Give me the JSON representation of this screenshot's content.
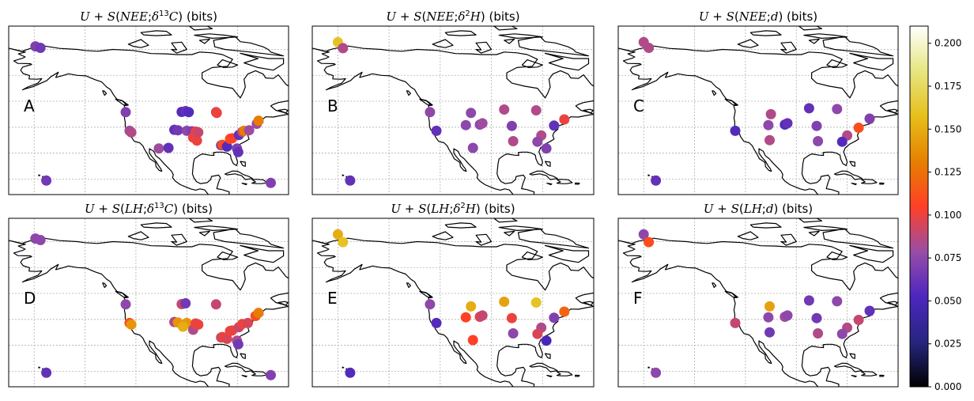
{
  "panels": [
    {
      "letter": "A",
      "title_pre": "U + S(",
      "title_var": "NEE",
      "title_tracer": "δ13C",
      "title_post": ") (bits)",
      "sites": [
        {
          "lon": -159.5,
          "lat": 71.2,
          "v": 0.07
        },
        {
          "lon": -157.5,
          "lat": 70.6,
          "v": 0.065
        },
        {
          "lon": -124.0,
          "lat": 45.8,
          "v": 0.07
        },
        {
          "lon": -122.5,
          "lat": 38.6,
          "v": 0.08
        },
        {
          "lon": -121.8,
          "lat": 38.0,
          "v": 0.085
        },
        {
          "lon": -104.9,
          "lat": 39.0,
          "v": 0.06
        },
        {
          "lon": -103.5,
          "lat": 38.8,
          "v": 0.065
        },
        {
          "lon": -111.0,
          "lat": 31.8,
          "v": 0.08
        },
        {
          "lon": -107.2,
          "lat": 32.0,
          "v": 0.06
        },
        {
          "lon": -102.0,
          "lat": 45.9,
          "v": 0.055
        },
        {
          "lon": -100.5,
          "lat": 46.2,
          "v": 0.06
        },
        {
          "lon": -99.2,
          "lat": 45.8,
          "v": 0.055
        },
        {
          "lon": -100.0,
          "lat": 38.6,
          "v": 0.075
        },
        {
          "lon": -98.0,
          "lat": 38.4,
          "v": 0.07
        },
        {
          "lon": -97.5,
          "lat": 36.0,
          "v": 0.1
        },
        {
          "lon": -96.0,
          "lat": 34.8,
          "v": 0.1
        },
        {
          "lon": -96.5,
          "lat": 38.3,
          "v": 0.1
        },
        {
          "lon": -95.5,
          "lat": 38.0,
          "v": 0.09
        },
        {
          "lon": -88.5,
          "lat": 45.8,
          "v": 0.095
        },
        {
          "lon": -88.2,
          "lat": 45.5,
          "v": 0.1
        },
        {
          "lon": -86.5,
          "lat": 33.0,
          "v": 0.065
        },
        {
          "lon": -86.0,
          "lat": 33.2,
          "v": 0.11
        },
        {
          "lon": -84.2,
          "lat": 32.5,
          "v": 0.055
        },
        {
          "lon": -83.0,
          "lat": 35.5,
          "v": 0.11
        },
        {
          "lon": -82.2,
          "lat": 35.7,
          "v": 0.105
        },
        {
          "lon": -80.3,
          "lat": 31.8,
          "v": 0.07
        },
        {
          "lon": -79.5,
          "lat": 37.0,
          "v": 0.06
        },
        {
          "lon": -78.2,
          "lat": 38.2,
          "v": 0.09
        },
        {
          "lon": -77.5,
          "lat": 38.6,
          "v": 0.13
        },
        {
          "lon": -75.5,
          "lat": 38.8,
          "v": 0.08
        },
        {
          "lon": -72.5,
          "lat": 41.3,
          "v": 0.08
        },
        {
          "lon": -71.8,
          "lat": 42.5,
          "v": 0.13
        },
        {
          "lon": -79.8,
          "lat": 30.4,
          "v": 0.06
        },
        {
          "lon": -155.2,
          "lat": 19.4,
          "v": 0.065
        },
        {
          "lon": -67.0,
          "lat": 18.5,
          "v": 0.07
        }
      ]
    },
    {
      "letter": "B",
      "title_pre": "U + S(",
      "title_var": "NEE",
      "title_tracer": "δ2H",
      "title_post": ") (bits)",
      "sites": [
        {
          "lon": -160.0,
          "lat": 72.8,
          "v": 0.16
        },
        {
          "lon": -158.0,
          "lat": 70.5,
          "v": 0.085
        },
        {
          "lon": -124.0,
          "lat": 45.8,
          "v": 0.075
        },
        {
          "lon": -121.5,
          "lat": 38.6,
          "v": 0.06
        },
        {
          "lon": -108.0,
          "lat": 45.5,
          "v": 0.075
        },
        {
          "lon": -110.0,
          "lat": 40.8,
          "v": 0.075
        },
        {
          "lon": -104.5,
          "lat": 41.0,
          "v": 0.075
        },
        {
          "lon": -103.5,
          "lat": 41.5,
          "v": 0.08
        },
        {
          "lon": -107.2,
          "lat": 32.0,
          "v": 0.075
        },
        {
          "lon": -95.0,
          "lat": 46.8,
          "v": 0.085
        },
        {
          "lon": -92.0,
          "lat": 40.5,
          "v": 0.07
        },
        {
          "lon": -91.5,
          "lat": 34.6,
          "v": 0.085
        },
        {
          "lon": -82.5,
          "lat": 46.5,
          "v": 0.085
        },
        {
          "lon": -80.5,
          "lat": 36.8,
          "v": 0.085
        },
        {
          "lon": -82.0,
          "lat": 34.4,
          "v": 0.075
        },
        {
          "lon": -75.5,
          "lat": 40.6,
          "v": 0.06
        },
        {
          "lon": -71.5,
          "lat": 43.0,
          "v": 0.1
        },
        {
          "lon": -78.5,
          "lat": 31.8,
          "v": 0.07
        },
        {
          "lon": -155.2,
          "lat": 19.4,
          "v": 0.06
        }
      ]
    },
    {
      "letter": "C",
      "title_pre": "U + S(",
      "title_var": "NEE",
      "title_tracer": "d",
      "title_post": ") (bits)",
      "sites": [
        {
          "lon": -160.0,
          "lat": 72.8,
          "v": 0.085
        },
        {
          "lon": -158.0,
          "lat": 70.6,
          "v": 0.085
        },
        {
          "lon": -124.0,
          "lat": 38.6,
          "v": 0.055
        },
        {
          "lon": -110.0,
          "lat": 45.0,
          "v": 0.085
        },
        {
          "lon": -110.5,
          "lat": 35.0,
          "v": 0.085
        },
        {
          "lon": -111.0,
          "lat": 40.8,
          "v": 0.075
        },
        {
          "lon": -104.5,
          "lat": 41.0,
          "v": 0.055
        },
        {
          "lon": -103.5,
          "lat": 41.5,
          "v": 0.06
        },
        {
          "lon": -95.0,
          "lat": 47.3,
          "v": 0.06
        },
        {
          "lon": -92.0,
          "lat": 40.5,
          "v": 0.07
        },
        {
          "lon": -91.5,
          "lat": 34.6,
          "v": 0.075
        },
        {
          "lon": -84.0,
          "lat": 47.0,
          "v": 0.075
        },
        {
          "lon": -80.0,
          "lat": 36.8,
          "v": 0.085
        },
        {
          "lon": -82.0,
          "lat": 34.4,
          "v": 0.055
        },
        {
          "lon": -71.2,
          "lat": 43.3,
          "v": 0.07
        },
        {
          "lon": -75.5,
          "lat": 39.8,
          "v": 0.11
        },
        {
          "lon": -155.2,
          "lat": 19.4,
          "v": 0.06
        }
      ]
    },
    {
      "letter": "D",
      "title_pre": "U + S(",
      "title_var": "LH",
      "title_tracer": "δ13C",
      "title_post": ") (bits)",
      "sites": [
        {
          "lon": -159.5,
          "lat": 71.2,
          "v": 0.075
        },
        {
          "lon": -157.5,
          "lat": 70.6,
          "v": 0.075
        },
        {
          "lon": -124.0,
          "lat": 45.8,
          "v": 0.075
        },
        {
          "lon": -122.5,
          "lat": 38.6,
          "v": 0.11
        },
        {
          "lon": -121.8,
          "lat": 38.0,
          "v": 0.14
        },
        {
          "lon": -104.9,
          "lat": 39.0,
          "v": 0.085
        },
        {
          "lon": -103.5,
          "lat": 38.8,
          "v": 0.14
        },
        {
          "lon": -100.0,
          "lat": 38.6,
          "v": 0.14
        },
        {
          "lon": -101.5,
          "lat": 37.2,
          "v": 0.15
        },
        {
          "lon": -102.0,
          "lat": 45.9,
          "v": 0.09
        },
        {
          "lon": -100.5,
          "lat": 46.2,
          "v": 0.065
        },
        {
          "lon": -97.5,
          "lat": 36.0,
          "v": 0.085
        },
        {
          "lon": -96.5,
          "lat": 38.4,
          "v": 0.1
        },
        {
          "lon": -95.5,
          "lat": 38.0,
          "v": 0.1
        },
        {
          "lon": -88.5,
          "lat": 45.8,
          "v": 0.09
        },
        {
          "lon": -86.5,
          "lat": 33.0,
          "v": 0.085
        },
        {
          "lon": -86.0,
          "lat": 33.2,
          "v": 0.1
        },
        {
          "lon": -84.2,
          "lat": 32.5,
          "v": 0.095
        },
        {
          "lon": -83.0,
          "lat": 35.5,
          "v": 0.1
        },
        {
          "lon": -82.2,
          "lat": 35.7,
          "v": 0.1
        },
        {
          "lon": -80.3,
          "lat": 31.8,
          "v": 0.085
        },
        {
          "lon": -79.5,
          "lat": 37.0,
          "v": 0.09
        },
        {
          "lon": -78.2,
          "lat": 38.2,
          "v": 0.1
        },
        {
          "lon": -76.0,
          "lat": 38.6,
          "v": 0.095
        },
        {
          "lon": -73.0,
          "lat": 41.3,
          "v": 0.11
        },
        {
          "lon": -71.8,
          "lat": 42.5,
          "v": 0.13
        },
        {
          "lon": -79.8,
          "lat": 30.4,
          "v": 0.065
        },
        {
          "lon": -155.2,
          "lat": 19.4,
          "v": 0.06
        },
        {
          "lon": -67.0,
          "lat": 18.5,
          "v": 0.07
        }
      ]
    },
    {
      "letter": "E",
      "title_pre": "U + S(",
      "title_var": "LH",
      "title_tracer": "δ2H",
      "title_post": ") (bits)",
      "sites": [
        {
          "lon": -160.0,
          "lat": 72.8,
          "v": 0.15
        },
        {
          "lon": -158.0,
          "lat": 69.8,
          "v": 0.16
        },
        {
          "lon": -124.0,
          "lat": 45.8,
          "v": 0.075
        },
        {
          "lon": -121.5,
          "lat": 38.6,
          "v": 0.055
        },
        {
          "lon": -108.0,
          "lat": 45.0,
          "v": 0.15
        },
        {
          "lon": -110.0,
          "lat": 40.8,
          "v": 0.105
        },
        {
          "lon": -104.5,
          "lat": 41.0,
          "v": 0.095
        },
        {
          "lon": -103.5,
          "lat": 41.5,
          "v": 0.09
        },
        {
          "lon": -107.2,
          "lat": 32.0,
          "v": 0.105
        },
        {
          "lon": -95.0,
          "lat": 46.8,
          "v": 0.145
        },
        {
          "lon": -92.0,
          "lat": 40.5,
          "v": 0.1
        },
        {
          "lon": -91.5,
          "lat": 34.6,
          "v": 0.075
        },
        {
          "lon": -82.5,
          "lat": 46.5,
          "v": 0.16
        },
        {
          "lon": -80.5,
          "lat": 36.8,
          "v": 0.085
        },
        {
          "lon": -82.0,
          "lat": 34.4,
          "v": 0.095
        },
        {
          "lon": -75.5,
          "lat": 40.6,
          "v": 0.07
        },
        {
          "lon": -71.5,
          "lat": 43.0,
          "v": 0.12
        },
        {
          "lon": -78.5,
          "lat": 31.8,
          "v": 0.05
        },
        {
          "lon": -155.2,
          "lat": 19.4,
          "v": 0.055
        }
      ]
    },
    {
      "letter": "F",
      "title_pre": "U + S(",
      "title_var": "LH",
      "title_tracer": "d",
      "title_post": ") (bits)",
      "sites": [
        {
          "lon": -160.0,
          "lat": 72.8,
          "v": 0.075
        },
        {
          "lon": -158.0,
          "lat": 69.8,
          "v": 0.11
        },
        {
          "lon": -124.0,
          "lat": 38.6,
          "v": 0.09
        },
        {
          "lon": -110.5,
          "lat": 45.0,
          "v": 0.145
        },
        {
          "lon": -110.5,
          "lat": 35.0,
          "v": 0.065
        },
        {
          "lon": -111.0,
          "lat": 40.8,
          "v": 0.075
        },
        {
          "lon": -104.5,
          "lat": 41.0,
          "v": 0.08
        },
        {
          "lon": -103.5,
          "lat": 41.5,
          "v": 0.075
        },
        {
          "lon": -95.0,
          "lat": 47.3,
          "v": 0.065
        },
        {
          "lon": -92.0,
          "lat": 40.5,
          "v": 0.065
        },
        {
          "lon": -91.5,
          "lat": 34.6,
          "v": 0.085
        },
        {
          "lon": -84.0,
          "lat": 47.0,
          "v": 0.075
        },
        {
          "lon": -80.0,
          "lat": 36.8,
          "v": 0.085
        },
        {
          "lon": -82.0,
          "lat": 34.4,
          "v": 0.075
        },
        {
          "lon": -71.2,
          "lat": 43.3,
          "v": 0.06
        },
        {
          "lon": -75.5,
          "lat": 39.8,
          "v": 0.09
        },
        {
          "lon": -155.2,
          "lat": 19.4,
          "v": 0.075
        }
      ]
    }
  ],
  "colorbar": {
    "min": 0.0,
    "max": 0.21,
    "ticks": [
      "0.000",
      "0.025",
      "0.050",
      "0.075",
      "0.100",
      "0.125",
      "0.150",
      "0.175",
      "0.200"
    ],
    "colormap": "CMRmap",
    "stops": [
      "#000000",
      "#262680",
      "#4d26bf",
      "#994da6",
      "#ff4026",
      "#e68000",
      "#e6bf1a",
      "#e6e680",
      "#ffffff"
    ]
  },
  "map": {
    "lon_range": [
      -170,
      -60
    ],
    "lat_range": [
      14,
      79
    ],
    "gridlines": "dotted"
  }
}
